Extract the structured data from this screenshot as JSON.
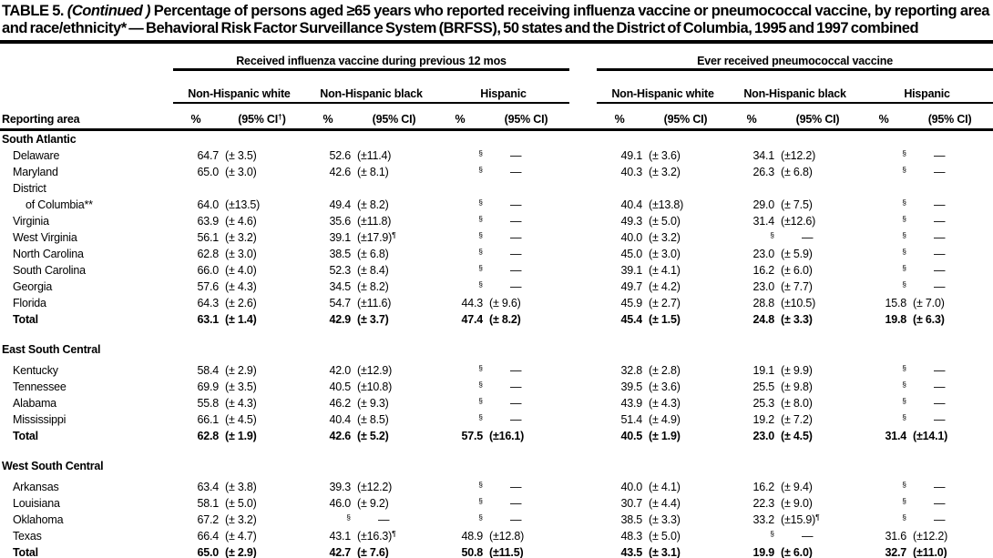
{
  "title": {
    "label": "TABLE 5.",
    "continued": "(Continued )",
    "rest": "Percentage of persons aged ≥65 years who reported receiving influenza vaccine or pneumococcal vaccine, by reporting area and race/ethnicity* — Behavioral Risk Factor Surveillance System (BRFSS), 50 states and the District of Columbia, 1995 and 1997 combined"
  },
  "header": {
    "groups": [
      "Received influenza vaccine during previous 12 mos",
      "Ever received pneumococcal vaccine"
    ],
    "subgroups": [
      "Non-Hispanic white",
      "Non-Hispanic black",
      "Hispanic"
    ],
    "row_header": "Reporting area",
    "pct": "%",
    "ci": "(95% CI)",
    "ci_first": "(95% CI†)"
  },
  "table": {
    "sections": [
      {
        "name": "South Atlantic",
        "rows": [
          {
            "area": "Delaware",
            "values": [
              "64.7",
              "(± 3.5)",
              "52.6",
              "(±11.4)",
              "§",
              "—",
              "49.1",
              "(± 3.6)",
              "34.1",
              "(±12.2)",
              "§",
              "—"
            ]
          },
          {
            "area": "Maryland",
            "values": [
              "65.0",
              "(± 3.0)",
              "42.6",
              "(± 8.1)",
              "§",
              "—",
              "40.3",
              "(± 3.2)",
              "26.3",
              "(± 6.8)",
              "§",
              "—"
            ]
          },
          {
            "prefix": "District",
            "area": "of Columbia**",
            "indent": 2,
            "values": [
              "64.0",
              "(±13.5)",
              "49.4",
              "(± 8.2)",
              "§",
              "—",
              "40.4",
              "(±13.8)",
              "29.0",
              "(± 7.5)",
              "§",
              "—"
            ]
          },
          {
            "area": "Virginia",
            "values": [
              "63.9",
              "(± 4.6)",
              "35.6",
              "(±11.8)",
              "§",
              "—",
              "49.3",
              "(± 5.0)",
              "31.4",
              "(±12.6)",
              "§",
              "—"
            ]
          },
          {
            "area": "West Virginia",
            "values": [
              "56.1",
              "(± 3.2)",
              "39.1",
              "(±17.9)¶",
              "§",
              "—",
              "40.0",
              "(± 3.2)",
              "§",
              "—",
              "§",
              "—"
            ]
          },
          {
            "area": "North Carolina",
            "values": [
              "62.8",
              "(± 3.0)",
              "38.5",
              "(± 6.8)",
              "§",
              "—",
              "45.0",
              "(± 3.0)",
              "23.0",
              "(± 5.9)",
              "§",
              "—"
            ]
          },
          {
            "area": "South Carolina",
            "values": [
              "66.0",
              "(± 4.0)",
              "52.3",
              "(± 8.4)",
              "§",
              "—",
              "39.1",
              "(± 4.1)",
              "16.2",
              "(± 6.0)",
              "§",
              "—"
            ]
          },
          {
            "area": "Georgia",
            "values": [
              "57.6",
              "(± 4.3)",
              "34.5",
              "(± 8.2)",
              "§",
              "—",
              "49.7",
              "(± 4.2)",
              "23.0",
              "(± 7.7)",
              "§",
              "—"
            ]
          },
          {
            "area": "Florida",
            "values": [
              "64.3",
              "(± 2.6)",
              "54.7",
              "(±11.6)",
              "44.3",
              "(± 9.6)",
              "45.9",
              "(± 2.7)",
              "28.8",
              "(±10.5)",
              "15.8",
              "(± 7.0)"
            ]
          },
          {
            "area": "Total",
            "bold": true,
            "values": [
              "63.1",
              "(± 1.4)",
              "42.9",
              "(± 3.7)",
              "47.4",
              "(± 8.2)",
              "45.4",
              "(± 1.5)",
              "24.8",
              "(± 3.3)",
              "19.8",
              "(± 6.3)"
            ]
          }
        ]
      },
      {
        "name": "East South Central",
        "rows": [
          {
            "area": "Kentucky",
            "values": [
              "58.4",
              "(± 2.9)",
              "42.0",
              "(±12.9)",
              "§",
              "—",
              "32.8",
              "(± 2.8)",
              "19.1",
              "(± 9.9)",
              "§",
              "—"
            ]
          },
          {
            "area": "Tennessee",
            "values": [
              "69.9",
              "(± 3.5)",
              "40.5",
              "(±10.8)",
              "§",
              "—",
              "39.5",
              "(± 3.6)",
              "25.5",
              "(± 9.8)",
              "§",
              "—"
            ]
          },
          {
            "area": "Alabama",
            "values": [
              "55.8",
              "(± 4.3)",
              "46.2",
              "(± 9.3)",
              "§",
              "—",
              "43.9",
              "(± 4.3)",
              "25.3",
              "(± 8.0)",
              "§",
              "—"
            ]
          },
          {
            "area": "Mississippi",
            "values": [
              "66.1",
              "(± 4.5)",
              "40.4",
              "(± 8.5)",
              "§",
              "—",
              "51.4",
              "(± 4.9)",
              "19.2",
              "(± 7.2)",
              "§",
              "—"
            ]
          },
          {
            "area": "Total",
            "bold": true,
            "values": [
              "62.8",
              "(± 1.9)",
              "42.6",
              "(± 5.2)",
              "57.5",
              "(±16.1)",
              "40.5",
              "(± 1.9)",
              "23.0",
              "(± 4.5)",
              "31.4",
              "(±14.1)"
            ]
          }
        ]
      },
      {
        "name": "West South Central",
        "rows": [
          {
            "area": "Arkansas",
            "values": [
              "63.4",
              "(± 3.8)",
              "39.3",
              "(±12.2)",
              "§",
              "—",
              "40.0",
              "(± 4.1)",
              "16.2",
              "(± 9.4)",
              "§",
              "—"
            ]
          },
          {
            "area": "Louisiana",
            "values": [
              "58.1",
              "(± 5.0)",
              "46.0",
              "(± 9.2)",
              "§",
              "—",
              "30.7",
              "(± 4.4)",
              "22.3",
              "(± 9.0)",
              "§",
              "—"
            ]
          },
          {
            "area": "Oklahoma",
            "values": [
              "67.2",
              "(± 3.2)",
              "§",
              "—",
              "§",
              "—",
              "38.5",
              "(± 3.3)",
              "33.2",
              "(±15.9)¶",
              "§",
              "—"
            ]
          },
          {
            "area": "Texas",
            "values": [
              "66.4",
              "(± 4.7)",
              "43.1",
              "(±16.3)¶",
              "48.9",
              "(±12.8)",
              "48.3",
              "(± 5.0)",
              "§",
              "—",
              "31.6",
              "(±12.2)"
            ]
          },
          {
            "area": "Total",
            "bold": true,
            "values": [
              "65.0",
              "(± 2.9)",
              "42.7",
              "(± 7.6)",
              "50.8",
              "(±11.5)",
              "43.5",
              "(± 3.1)",
              "19.9",
              "(± 6.0)",
              "32.7",
              "(±11.0)"
            ]
          }
        ]
      }
    ]
  }
}
